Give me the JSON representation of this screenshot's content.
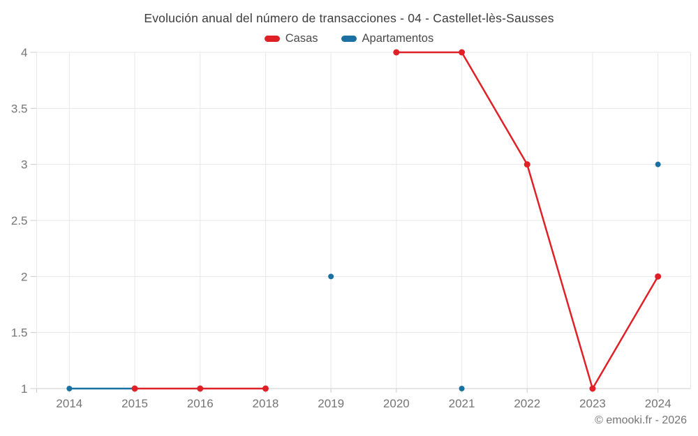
{
  "header": {
    "title": "Evolución anual del número de transacciones - 04 - Castellet-lès-Sausses"
  },
  "footer": {
    "copyright": "© emooki.fr - 2026"
  },
  "colors": {
    "casas": "#e02027",
    "apartamentos": "#1a70a0",
    "grid": "#e7e7e7",
    "axis": "#cccccc",
    "tick_label": "#757575",
    "title_text": "#3c3c3c",
    "legend_text": "#4a4a4a",
    "background": "#ffffff"
  },
  "chart_data": {
    "type": "line",
    "title": "Evolución anual del número de transacciones - 04 - Castellet-lès-Sausses",
    "xlabel": "",
    "ylabel": "",
    "categories": [
      "2014",
      "2015",
      "2016",
      "2018",
      "2019",
      "2020",
      "2021",
      "2022",
      "2023",
      "2024"
    ],
    "series": [
      {
        "name": "Casas",
        "color": "#e02027",
        "marker_radius": 4.5,
        "values": [
          null,
          1,
          1,
          1,
          null,
          4,
          4,
          3,
          1,
          2
        ]
      },
      {
        "name": "Apartamentos",
        "color": "#1a70a0",
        "marker_radius": 4,
        "values": [
          1,
          1,
          null,
          null,
          2,
          null,
          1,
          null,
          null,
          3
        ]
      }
    ],
    "yticks": [
      1,
      1.5,
      2,
      2.5,
      3,
      3.5,
      4
    ],
    "ytick_labels": [
      "1",
      "1.5",
      "2",
      "2.5",
      "3",
      "3.5",
      "4"
    ],
    "ylim": [
      1,
      4
    ],
    "grid": true,
    "legend_position": "top",
    "notes": "Casas has a gap at 2019; Apartamentos has isolated points at 2019, 2021 and 2024; year 2017 absent from axis"
  }
}
